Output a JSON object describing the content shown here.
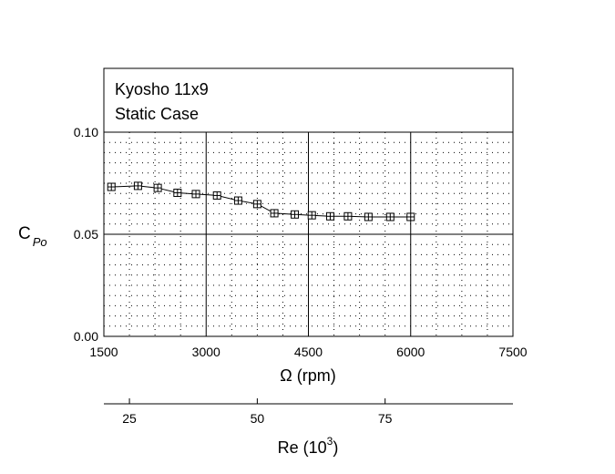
{
  "chart_data": {
    "type": "line",
    "title_lines": [
      "Kyosho 11x9",
      "Static Case"
    ],
    "xlabel": "Ω (rpm)",
    "ylabel_main": "C",
    "ylabel_sub": "Po",
    "xlim": [
      1500,
      7500
    ],
    "ylim": [
      0.0,
      0.1
    ],
    "x_ticks": [
      "1500",
      "3000",
      "4500",
      "6000",
      "7500"
    ],
    "y_ticks": [
      "0.00",
      "0.05",
      "0.10"
    ],
    "grid": "dotted minor, solid major",
    "series": [
      {
        "marker": "square-plus",
        "x": [
          1610,
          2000,
          2290,
          2580,
          2850,
          3160,
          3470,
          3750,
          4000,
          4300,
          4550,
          4820,
          5080,
          5380,
          5700,
          6000
        ],
        "y": [
          0.0732,
          0.0737,
          0.0727,
          0.0703,
          0.0697,
          0.069,
          0.0665,
          0.0648,
          0.0603,
          0.0597,
          0.0593,
          0.0588,
          0.0588,
          0.0585,
          0.0585,
          0.0585
        ]
      }
    ],
    "secondary_axis": {
      "label_main": "Re (10",
      "label_sup": "3",
      "label_end": ")",
      "range": [
        20,
        100
      ],
      "ticks": [
        "25",
        "50",
        "75"
      ]
    }
  }
}
